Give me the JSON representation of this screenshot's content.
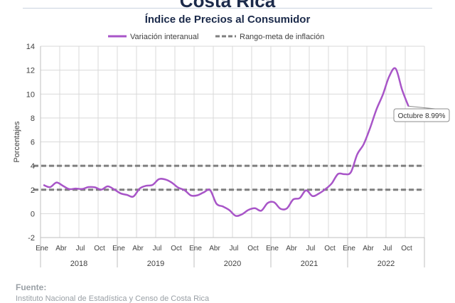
{
  "header": {
    "title": "Costa Rica",
    "subtitle": "Índice de Precios al Consumidor"
  },
  "source": {
    "label": "Fuente:",
    "text": "Instituto Nacional de Estadística y Censo de Costa Rica"
  },
  "colors": {
    "series": "#a855c8",
    "target": "#7f7f7f",
    "grid": "#d9d9d9",
    "text": "#404040"
  },
  "chart_data": {
    "type": "line",
    "ylabel": "Porcentajes",
    "ylim": [
      -2,
      14
    ],
    "yticks": [
      "-2",
      "0",
      "2",
      "4",
      "6",
      "8",
      "10",
      "12",
      "14"
    ],
    "month_labels": [
      "Ene",
      "Abr",
      "Jul",
      "Oct",
      "Ene",
      "Abr",
      "Jul",
      "Oct",
      "Ene",
      "Abr",
      "Jul",
      "Oct",
      "Ene",
      "Abr",
      "Jul",
      "Oct",
      "Ene",
      "Abr",
      "Jul",
      "Oct"
    ],
    "years": [
      "2018",
      "2019",
      "2020",
      "2021",
      "2022"
    ],
    "grid": true,
    "legend_position": "top",
    "series": [
      {
        "name": "Variación interanual",
        "values": [
          2.39,
          2.22,
          2.6,
          2.33,
          2.05,
          2.1,
          2.06,
          2.22,
          2.2,
          2.01,
          2.28,
          2.03,
          1.7,
          1.57,
          1.43,
          2.1,
          2.33,
          2.4,
          2.88,
          2.86,
          2.6,
          2.18,
          1.97,
          1.52,
          1.53,
          1.78,
          1.97,
          0.83,
          0.6,
          0.3,
          -0.18,
          -0.05,
          0.31,
          0.45,
          0.25,
          0.89,
          0.95,
          0.41,
          0.44,
          1.19,
          1.3,
          1.95,
          1.47,
          1.68,
          2.04,
          2.52,
          3.32,
          3.3,
          3.46,
          4.96,
          5.8,
          7.15,
          8.71,
          9.95,
          11.48,
          12.13,
          10.37,
          8.99
        ]
      },
      {
        "name": "Rango-meta de inflación",
        "bounds": [
          2,
          4
        ]
      }
    ],
    "annotation": "Octubre 8.99%"
  }
}
